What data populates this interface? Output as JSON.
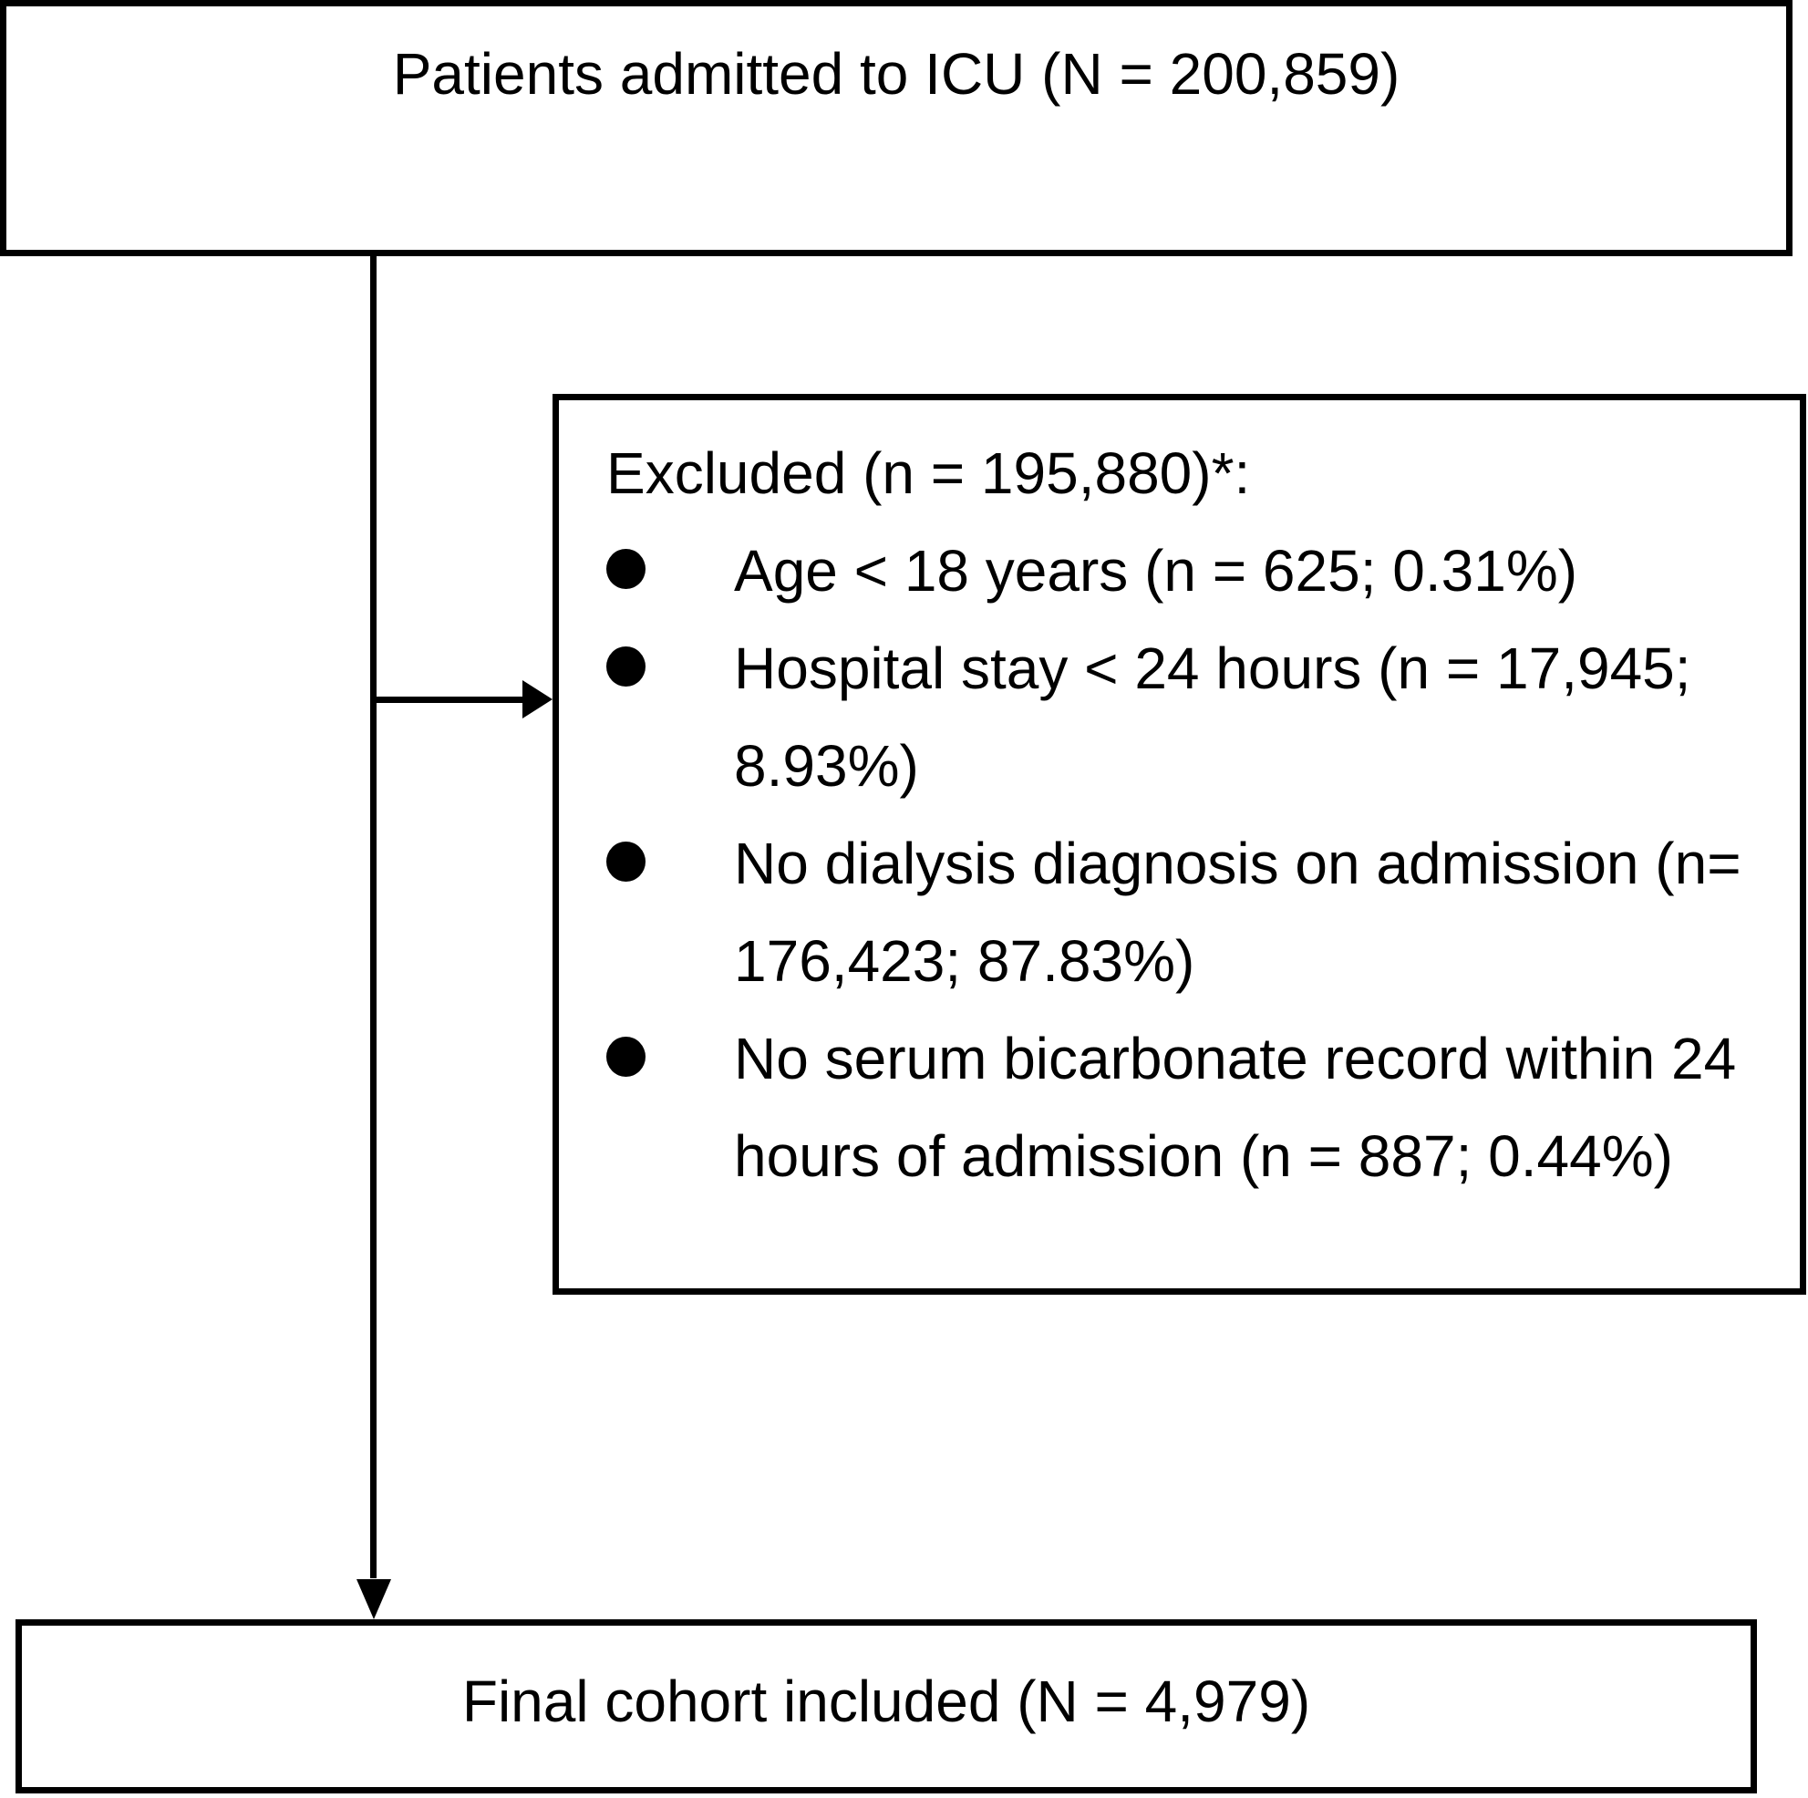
{
  "page": {
    "background": "#ffffff",
    "line_color": "#000000",
    "text_color": "#000000"
  },
  "flowchart": {
    "top_box": {
      "label": "Patients admitted to ICU (N = 200,859)"
    },
    "excluded_box": {
      "title": "Excluded (n = 195,880)*:",
      "bullets": [
        {
          "lines": [
            "Age < 18 years (n = 625; 0.31%)"
          ]
        },
        {
          "lines": [
            "Hospital stay < 24 hours (n = 17,945;",
            "8.93%)"
          ]
        },
        {
          "lines": [
            "No dialysis diagnosis on admission (n=",
            "176,423; 87.83%)"
          ]
        },
        {
          "lines": [
            "No serum bicarbonate record within 24",
            "hours of admission (n = 887; 0.44%)"
          ]
        }
      ]
    },
    "final_box": {
      "label": "Final cohort included (N = 4,979)"
    }
  }
}
